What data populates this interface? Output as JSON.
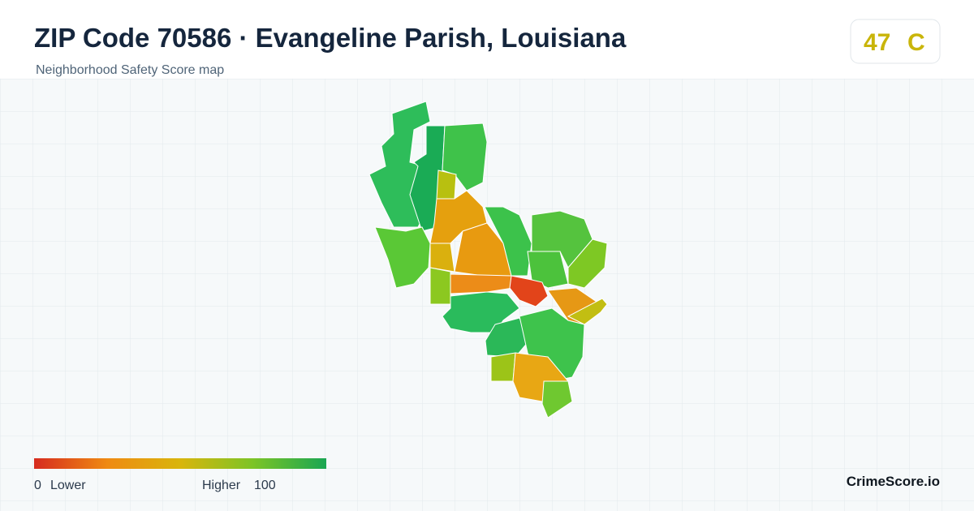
{
  "header": {
    "title": "ZIP Code 70586 · Evangeline Parish, Louisiana",
    "subtitle": "Neighborhood Safety Score map"
  },
  "score": {
    "value": 47,
    "grade": "C"
  },
  "legend": {
    "min": 0,
    "min_label": "Lower",
    "max_label": "Higher",
    "max": 100
  },
  "brand": "CrimeScore.io"
}
